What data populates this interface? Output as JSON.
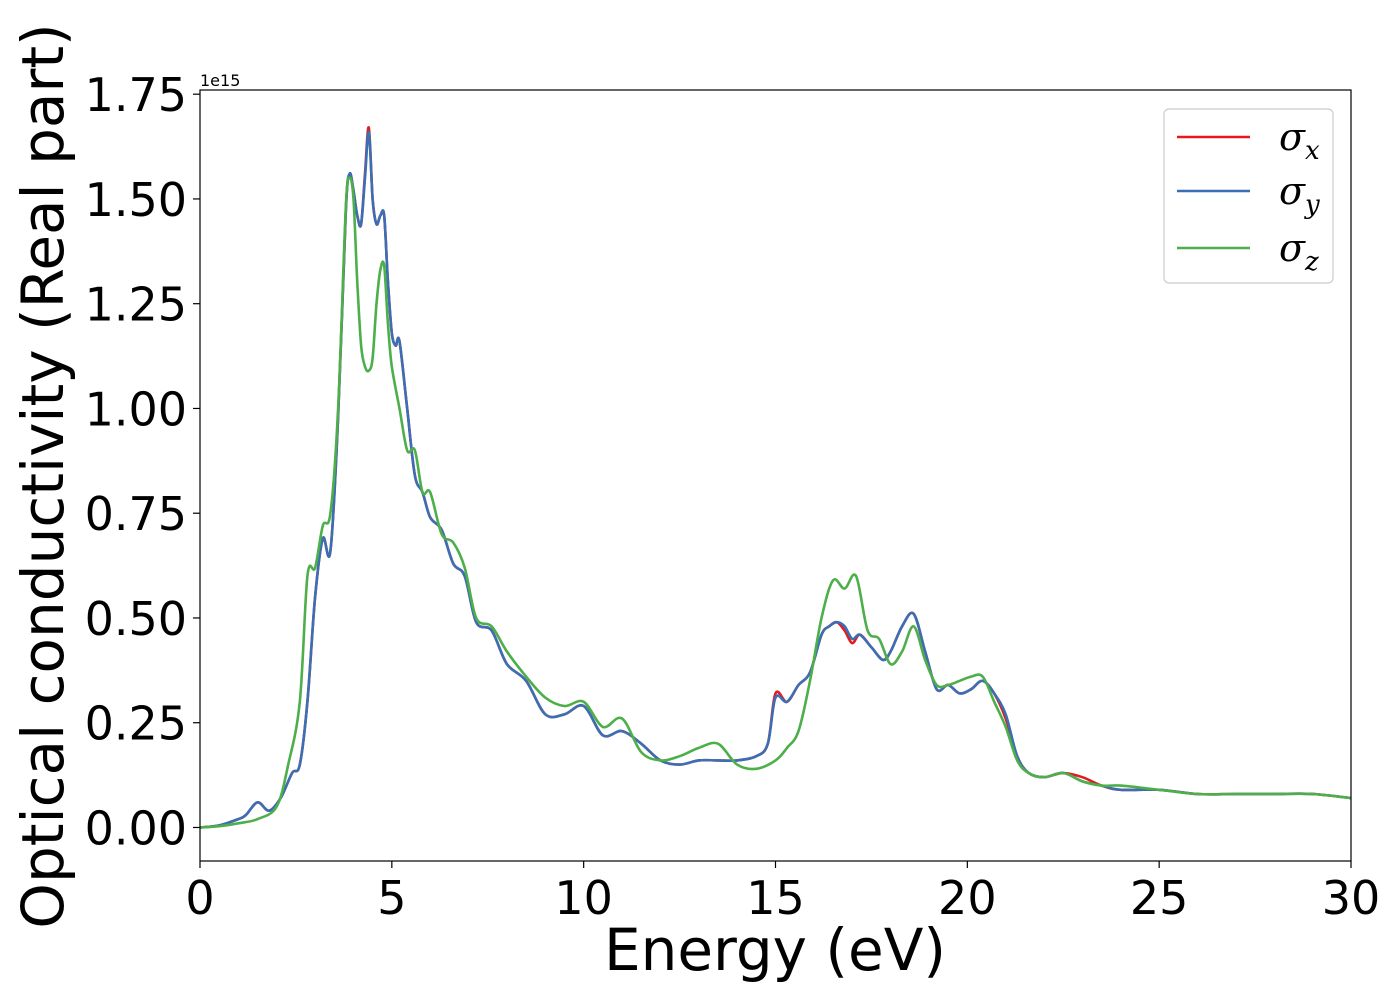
{
  "chart_data": {
    "type": "line",
    "xlabel": "Energy (eV)",
    "ylabel": "Optical conductivity (Real part)",
    "y_offset_text": "1e15",
    "xlim": [
      0,
      30
    ],
    "ylim": [
      -0.08,
      1.76
    ],
    "y_scale": 1000000000000000.0,
    "x_ticks": [
      0,
      5,
      10,
      15,
      20,
      25,
      30
    ],
    "x_tick_labels": [
      "0",
      "5",
      "10",
      "15",
      "20",
      "25",
      "30"
    ],
    "y_ticks": [
      0.0,
      0.25,
      0.5,
      0.75,
      1.0,
      1.25,
      1.5,
      1.75
    ],
    "y_tick_labels": [
      "0.00",
      "0.25",
      "0.50",
      "0.75",
      "1.00",
      "1.25",
      "1.50",
      "1.75"
    ],
    "grid": false,
    "legend_position": "top-right",
    "series": [
      {
        "name": "σx",
        "symbol": "σ",
        "subscript": "x",
        "color": "#e41a1c",
        "x": [
          0,
          0.5,
          1.0,
          1.2,
          1.5,
          1.8,
          2.1,
          2.4,
          2.6,
          2.8,
          3.0,
          3.2,
          3.4,
          3.6,
          3.8,
          3.9,
          4.0,
          4.1,
          4.2,
          4.3,
          4.4,
          4.5,
          4.6,
          4.7,
          4.8,
          4.9,
          5.0,
          5.1,
          5.2,
          5.4,
          5.6,
          5.8,
          6.0,
          6.3,
          6.6,
          6.9,
          7.2,
          7.6,
          8.0,
          8.5,
          9.0,
          9.5,
          10.0,
          10.5,
          11.0,
          11.5,
          12.0,
          12.5,
          13.0,
          13.5,
          14.0,
          14.5,
          14.8,
          15.0,
          15.3,
          15.6,
          15.9,
          16.2,
          16.4,
          16.6,
          16.8,
          17.0,
          17.2,
          17.5,
          17.8,
          18.0,
          18.3,
          18.6,
          18.9,
          19.2,
          19.5,
          19.8,
          20.1,
          20.4,
          20.7,
          21.0,
          21.3,
          21.6,
          22.0,
          22.5,
          23.0,
          23.5,
          24.0,
          25.0,
          26.0,
          27.0,
          28.0,
          29.0,
          30.0
        ],
        "y": [
          0.0,
          0.005,
          0.02,
          0.03,
          0.06,
          0.04,
          0.07,
          0.13,
          0.15,
          0.3,
          0.55,
          0.69,
          0.66,
          0.98,
          1.47,
          1.56,
          1.52,
          1.46,
          1.44,
          1.56,
          1.67,
          1.5,
          1.44,
          1.46,
          1.46,
          1.3,
          1.18,
          1.15,
          1.16,
          1.0,
          0.84,
          0.8,
          0.74,
          0.71,
          0.63,
          0.6,
          0.49,
          0.47,
          0.39,
          0.35,
          0.27,
          0.27,
          0.29,
          0.22,
          0.23,
          0.2,
          0.16,
          0.15,
          0.16,
          0.16,
          0.16,
          0.17,
          0.2,
          0.32,
          0.3,
          0.34,
          0.37,
          0.46,
          0.48,
          0.49,
          0.47,
          0.44,
          0.46,
          0.43,
          0.4,
          0.42,
          0.48,
          0.51,
          0.42,
          0.33,
          0.34,
          0.32,
          0.33,
          0.35,
          0.32,
          0.26,
          0.17,
          0.13,
          0.12,
          0.13,
          0.12,
          0.1,
          0.09,
          0.09,
          0.08,
          0.08,
          0.08,
          0.08,
          0.07
        ]
      },
      {
        "name": "σy",
        "symbol": "σ",
        "subscript": "y",
        "color": "#3a6fb5",
        "x": [
          0,
          0.5,
          1.0,
          1.2,
          1.5,
          1.8,
          2.1,
          2.4,
          2.6,
          2.8,
          3.0,
          3.2,
          3.4,
          3.6,
          3.8,
          3.9,
          4.0,
          4.1,
          4.2,
          4.3,
          4.4,
          4.5,
          4.6,
          4.7,
          4.8,
          4.9,
          5.0,
          5.1,
          5.2,
          5.4,
          5.6,
          5.8,
          6.0,
          6.3,
          6.6,
          6.9,
          7.2,
          7.6,
          8.0,
          8.5,
          9.0,
          9.5,
          10.0,
          10.5,
          11.0,
          11.5,
          12.0,
          12.5,
          13.0,
          13.5,
          14.0,
          14.5,
          14.8,
          15.0,
          15.3,
          15.6,
          15.9,
          16.2,
          16.4,
          16.6,
          16.8,
          17.0,
          17.2,
          17.5,
          17.8,
          18.0,
          18.3,
          18.6,
          18.9,
          19.2,
          19.5,
          19.8,
          20.1,
          20.4,
          20.7,
          21.0,
          21.3,
          21.6,
          22.0,
          22.5,
          23.0,
          23.5,
          24.0,
          25.0,
          26.0,
          27.0,
          28.0,
          29.0,
          30.0
        ],
        "y": [
          0.0,
          0.005,
          0.02,
          0.03,
          0.06,
          0.04,
          0.07,
          0.13,
          0.15,
          0.3,
          0.55,
          0.69,
          0.66,
          0.98,
          1.47,
          1.56,
          1.52,
          1.46,
          1.44,
          1.55,
          1.66,
          1.5,
          1.44,
          1.46,
          1.46,
          1.3,
          1.18,
          1.15,
          1.16,
          1.0,
          0.84,
          0.8,
          0.74,
          0.71,
          0.63,
          0.6,
          0.49,
          0.47,
          0.39,
          0.35,
          0.27,
          0.27,
          0.29,
          0.22,
          0.23,
          0.2,
          0.16,
          0.15,
          0.16,
          0.16,
          0.16,
          0.17,
          0.2,
          0.31,
          0.3,
          0.34,
          0.37,
          0.46,
          0.48,
          0.49,
          0.48,
          0.45,
          0.46,
          0.43,
          0.4,
          0.42,
          0.48,
          0.51,
          0.42,
          0.33,
          0.34,
          0.32,
          0.33,
          0.35,
          0.32,
          0.27,
          0.17,
          0.13,
          0.12,
          0.13,
          0.11,
          0.1,
          0.09,
          0.09,
          0.08,
          0.08,
          0.08,
          0.08,
          0.07
        ]
      },
      {
        "name": "σz",
        "symbol": "σ",
        "subscript": "z",
        "color": "#4daf4a",
        "x": [
          0,
          0.5,
          1.0,
          1.5,
          2.0,
          2.3,
          2.6,
          2.8,
          3.0,
          3.2,
          3.4,
          3.6,
          3.8,
          3.9,
          4.0,
          4.1,
          4.2,
          4.3,
          4.4,
          4.5,
          4.6,
          4.7,
          4.8,
          4.9,
          5.0,
          5.2,
          5.4,
          5.6,
          5.8,
          6.0,
          6.3,
          6.6,
          6.9,
          7.2,
          7.6,
          8.0,
          8.5,
          9.0,
          9.5,
          10.0,
          10.5,
          11.0,
          11.5,
          12.0,
          12.5,
          13.0,
          13.5,
          14.0,
          14.5,
          15.0,
          15.3,
          15.6,
          15.9,
          16.2,
          16.5,
          16.8,
          17.1,
          17.4,
          17.7,
          18.0,
          18.3,
          18.6,
          18.9,
          19.2,
          19.5,
          19.8,
          20.1,
          20.4,
          20.7,
          21.0,
          21.3,
          21.6,
          22.0,
          22.5,
          23.0,
          23.5,
          24.0,
          25.0,
          26.0,
          27.0,
          28.0,
          29.0,
          30.0
        ],
        "y": [
          0.0,
          0.003,
          0.01,
          0.02,
          0.05,
          0.15,
          0.3,
          0.6,
          0.62,
          0.72,
          0.75,
          1.0,
          1.48,
          1.55,
          1.5,
          1.3,
          1.15,
          1.1,
          1.09,
          1.12,
          1.25,
          1.33,
          1.34,
          1.2,
          1.1,
          1.0,
          0.9,
          0.9,
          0.8,
          0.8,
          0.7,
          0.68,
          0.62,
          0.5,
          0.48,
          0.42,
          0.36,
          0.31,
          0.29,
          0.3,
          0.24,
          0.26,
          0.18,
          0.16,
          0.17,
          0.19,
          0.2,
          0.15,
          0.14,
          0.16,
          0.19,
          0.23,
          0.35,
          0.5,
          0.59,
          0.57,
          0.6,
          0.47,
          0.45,
          0.39,
          0.42,
          0.48,
          0.4,
          0.34,
          0.34,
          0.35,
          0.36,
          0.36,
          0.3,
          0.24,
          0.16,
          0.13,
          0.12,
          0.13,
          0.11,
          0.1,
          0.1,
          0.09,
          0.08,
          0.08,
          0.08,
          0.08,
          0.07
        ]
      }
    ]
  }
}
